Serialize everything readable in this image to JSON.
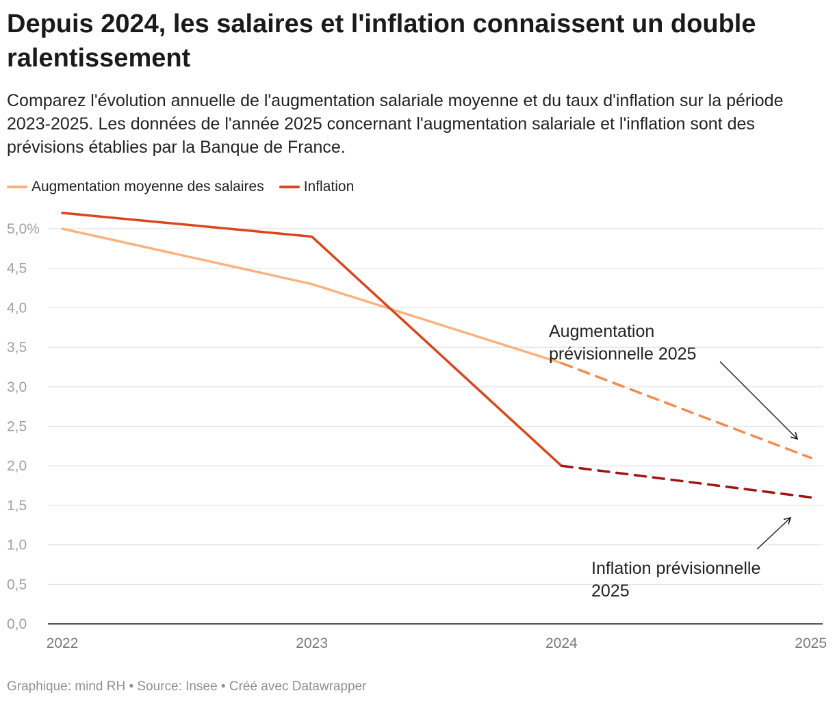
{
  "chart_data": {
    "type": "line",
    "title": "Depuis 2024, les salaires et l'inflation connaissent un double ralentissement",
    "subtitle": "Comparez l'évolution annuelle de l'augmentation salariale moyenne et du taux d'inflation sur la période 2023-2025. Les données de l'année 2025 concernant l'augmentation salariale et l'inflation sont des prévisions établies par la Banque de France.",
    "x": [
      "2022",
      "2023",
      "2024",
      "2025"
    ],
    "ylim": [
      0,
      5.0
    ],
    "y_ticks": [
      "0,0",
      "0,5",
      "1,0",
      "1,5",
      "2,0",
      "2,5",
      "3,0",
      "3,5",
      "4,0",
      "4,5",
      "5,0%"
    ],
    "y_tick_values": [
      0,
      0.5,
      1.0,
      1.5,
      2.0,
      2.5,
      3.0,
      3.5,
      4.0,
      4.5,
      5.0
    ],
    "grid": true,
    "legend_position": "top-left",
    "series": [
      {
        "name": "Augmentation moyenne des salaires",
        "values": [
          5.0,
          4.3,
          3.3,
          2.1
        ],
        "color": "#fcb27f",
        "forecast_color": "#f58a4f"
      },
      {
        "name": "Inflation",
        "values": [
          5.2,
          4.9,
          2.0,
          1.6
        ],
        "color": "#d9461e",
        "forecast_color": "#a01414"
      }
    ],
    "forecast_from_index": 2,
    "annotations": [
      {
        "lines": [
          "Augmentation",
          "prévisionnelle 2025"
        ],
        "series": 0
      },
      {
        "lines": [
          "Inflation prévisionnelle",
          "2025"
        ],
        "series": 1
      }
    ]
  },
  "footer": "Graphique: mind RH • Source: Insee • Créé avec Datawrapper"
}
